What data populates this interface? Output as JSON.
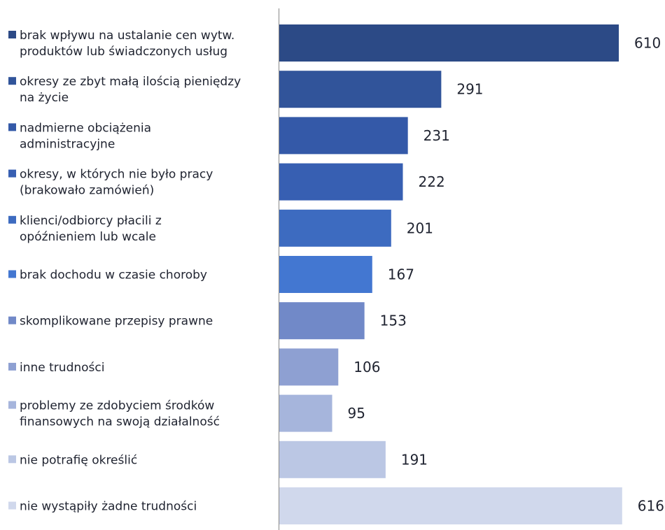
{
  "chart_data": {
    "type": "bar",
    "orientation": "horizontal",
    "xlim": [
      0,
      616
    ],
    "grid": false,
    "categories": [
      [
        "brak wpływu na ustalanie cen wytw.",
        "produktów lub świadczonych usług"
      ],
      [
        "okresy ze zbyt małą ilością pieniędzy",
        "na życie"
      ],
      [
        "nadmierne obciążenia",
        "administracyjne"
      ],
      [
        "okresy, w których nie było pracy",
        "(brakowało zamówień)"
      ],
      [
        "klienci/odbiorcy płacili z",
        "opóźnieniem lub wcale"
      ],
      [
        "brak dochodu w czasie choroby"
      ],
      [
        "skomplikowane przepisy prawne"
      ],
      [
        "inne trudności"
      ],
      [
        "problemy ze zdobyciem środków",
        "finansowych na swoją działalność"
      ],
      [
        "nie potrafię określić"
      ],
      [
        "nie wystąpiły żadne trudności"
      ]
    ],
    "values": [
      610,
      291,
      231,
      222,
      201,
      167,
      153,
      106,
      95,
      191,
      616
    ],
    "colors": [
      "#2c4a86",
      "#31549a",
      "#3459a8",
      "#375fb2",
      "#3d6bc0",
      "#4377d1",
      "#7189c8",
      "#8ea0d2",
      "#a6b5dc",
      "#bbc7e4",
      "#d0d8ec"
    ]
  }
}
